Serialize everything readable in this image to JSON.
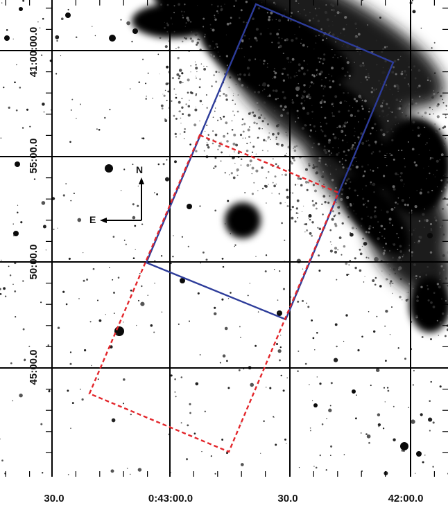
{
  "image": {
    "description_colors": {
      "background": "#ffffff",
      "stars": "#111111",
      "grid": "#000000",
      "solid_footprint": "#2d3c9a",
      "dashed_footprint": "#e3262b"
    }
  },
  "axes": {
    "x_tick_labels": [
      "30.0",
      "0:43:00.0",
      "30.0",
      "42:00.0"
    ],
    "y_tick_labels": [
      "41:00:00.0",
      "55:00.0",
      "50:00.0",
      "45:00.0"
    ]
  },
  "compass": {
    "north_label": "N",
    "east_label": "E"
  },
  "footprints": [
    {
      "id": "solid",
      "style": "solid",
      "color": "#2d3c9a"
    },
    {
      "id": "dashed",
      "style": "dashed",
      "color": "#e3262b"
    }
  ]
}
